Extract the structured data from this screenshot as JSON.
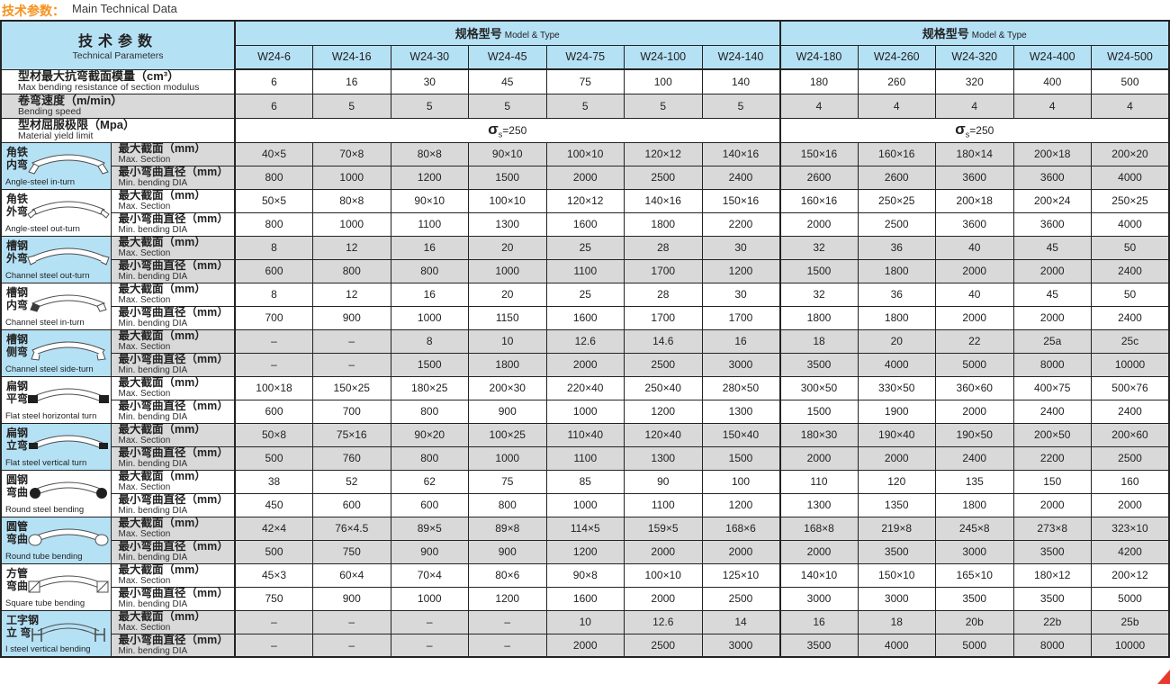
{
  "colors": {
    "accent_blue": "#b5e1f5",
    "row_grey": "#d9d9d9",
    "title_orange": "#f6921e",
    "corner_red": "#e8392f",
    "border": "#232323"
  },
  "title": {
    "zh": "技术参数：",
    "en": "Main Technical Data"
  },
  "header": {
    "param_zh": "技术参数",
    "param_en": "Technical Parameters",
    "group_label_zh": "规格型号",
    "group_label_en": "Model & Type",
    "models": [
      "W24-6",
      "W24-16",
      "W24-30",
      "W24-45",
      "W24-75",
      "W24-100",
      "W24-140",
      "W24-180",
      "W24-260",
      "W24-320",
      "W24-400",
      "W24-500"
    ]
  },
  "spec_rows": [
    {
      "key": "section-modulus",
      "zh": "型材最大抗弯截面模量（cm³）",
      "en": "Max bending resistance of section modulus",
      "shade": "white",
      "values": [
        "6",
        "16",
        "30",
        "45",
        "75",
        "100",
        "140",
        "180",
        "260",
        "320",
        "400",
        "500"
      ]
    },
    {
      "key": "bending-speed",
      "zh": "卷弯速度（m/min）",
      "en": "Bending speed",
      "shade": "grey",
      "values": [
        "6",
        "5",
        "5",
        "5",
        "5",
        "5",
        "5",
        "4",
        "4",
        "4",
        "4",
        "4"
      ]
    }
  ],
  "yield_row": {
    "zh": "型材屈服极限（Mpa）",
    "en": "Material yield limit",
    "sigma": "σ",
    "sub": "s",
    "rest": "=250"
  },
  "row_labels": {
    "max_zh": "最大截面（mm）",
    "max_en": "Max. Section",
    "min_zh": "最小弯曲直径（mm）",
    "min_en": "Min. bending DIA"
  },
  "bend_rows": [
    {
      "zh1": "角铁",
      "zh2": "内弯",
      "en": "Angle-steel in-turn",
      "icon": "angle-steel-in-turn",
      "max": [
        "40×5",
        "70×8",
        "80×8",
        "90×10",
        "100×10",
        "120×12",
        "140×16",
        "150×16",
        "160×16",
        "180×14",
        "200×18",
        "200×20"
      ],
      "min": [
        "800",
        "1000",
        "1200",
        "1500",
        "2000",
        "2500",
        "2400",
        "2600",
        "2600",
        "3600",
        "3600",
        "4000"
      ]
    },
    {
      "zh1": "角铁",
      "zh2": "外弯",
      "en": "Angle-steel out-turn",
      "icon": "angle-steel-out-turn",
      "max": [
        "50×5",
        "80×8",
        "90×10",
        "100×10",
        "120×12",
        "140×16",
        "150×16",
        "160×16",
        "250×25",
        "200×18",
        "200×24",
        "250×25"
      ],
      "min": [
        "800",
        "1000",
        "1100",
        "1300",
        "1600",
        "1800",
        "2200",
        "2000",
        "2500",
        "3600",
        "3600",
        "4000"
      ]
    },
    {
      "zh1": "槽钢",
      "zh2": "外弯",
      "en": "Channel steel out-turn",
      "icon": "channel-steel-out-turn",
      "max": [
        "8",
        "12",
        "16",
        "20",
        "25",
        "28",
        "30",
        "32",
        "36",
        "40",
        "45",
        "50"
      ],
      "min": [
        "600",
        "800",
        "800",
        "1000",
        "1100",
        "1700",
        "1200",
        "1500",
        "1800",
        "2000",
        "2000",
        "2400"
      ]
    },
    {
      "zh1": "槽钢",
      "zh2": "内弯",
      "en": "Channel steel in-turn",
      "icon": "channel-steel-in-turn",
      "max": [
        "8",
        "12",
        "16",
        "20",
        "25",
        "28",
        "30",
        "32",
        "36",
        "40",
        "45",
        "50"
      ],
      "min": [
        "700",
        "900",
        "1000",
        "1150",
        "1600",
        "1700",
        "1700",
        "1800",
        "1800",
        "2000",
        "2000",
        "2400"
      ]
    },
    {
      "zh1": "槽钢",
      "zh2": "侧弯",
      "en": "Channel steel side-turn",
      "icon": "channel-steel-side-turn",
      "max": [
        "–",
        "–",
        "8",
        "10",
        "12.6",
        "14.6",
        "16",
        "18",
        "20",
        "22",
        "25a",
        "25c"
      ],
      "min": [
        "–",
        "–",
        "1500",
        "1800",
        "2000",
        "2500",
        "3000",
        "3500",
        "4000",
        "5000",
        "8000",
        "10000"
      ]
    },
    {
      "zh1": "扁钢",
      "zh2": "平弯",
      "en": "Flat steel horizontal turn",
      "icon": "flat-steel-horizontal-turn",
      "max": [
        "100×18",
        "150×25",
        "180×25",
        "200×30",
        "220×40",
        "250×40",
        "280×50",
        "300×50",
        "330×50",
        "360×60",
        "400×75",
        "500×76"
      ],
      "min": [
        "600",
        "700",
        "800",
        "900",
        "1000",
        "1200",
        "1300",
        "1500",
        "1900",
        "2000",
        "2400",
        "2400"
      ]
    },
    {
      "zh1": "扁钢",
      "zh2": "立弯",
      "en": "Flat steel vertical turn",
      "icon": "flat-steel-vertical-turn",
      "max": [
        "50×8",
        "75×16",
        "90×20",
        "100×25",
        "110×40",
        "120×40",
        "150×40",
        "180×30",
        "190×40",
        "190×50",
        "200×50",
        "200×60"
      ],
      "min": [
        "500",
        "760",
        "800",
        "1000",
        "1100",
        "1300",
        "1500",
        "2000",
        "2000",
        "2400",
        "2200",
        "2500"
      ]
    },
    {
      "zh1": "圆钢",
      "zh2": "弯曲",
      "en": "Round steel bending",
      "icon": "round-steel-bending",
      "max": [
        "38",
        "52",
        "62",
        "75",
        "85",
        "90",
        "100",
        "110",
        "120",
        "135",
        "150",
        "160"
      ],
      "min": [
        "450",
        "600",
        "600",
        "800",
        "1000",
        "1100",
        "1200",
        "1300",
        "1350",
        "1800",
        "2000",
        "2000"
      ]
    },
    {
      "zh1": "圆管",
      "zh2": "弯曲",
      "en": "Round tube bending",
      "icon": "round-tube-bending",
      "max": [
        "42×4",
        "76×4.5",
        "89×5",
        "89×8",
        "114×5",
        "159×5",
        "168×6",
        "168×8",
        "219×8",
        "245×8",
        "273×8",
        "323×10"
      ],
      "min": [
        "500",
        "750",
        "900",
        "900",
        "1200",
        "2000",
        "2000",
        "2000",
        "3500",
        "3000",
        "3500",
        "4200"
      ]
    },
    {
      "zh1": "方管",
      "zh2": "弯曲",
      "en": "Square tube bending",
      "icon": "square-tube-bending",
      "max": [
        "45×3",
        "60×4",
        "70×4",
        "80×6",
        "90×8",
        "100×10",
        "125×10",
        "140×10",
        "150×10",
        "165×10",
        "180×12",
        "200×12"
      ],
      "min": [
        "750",
        "900",
        "1000",
        "1200",
        "1600",
        "2000",
        "2500",
        "3000",
        "3000",
        "3500",
        "3500",
        "5000"
      ]
    },
    {
      "zh1": "工字钢",
      "zh2": "立 弯",
      "en": "I steel vertical bending",
      "icon": "i-steel-vertical-bending",
      "max": [
        "–",
        "–",
        "–",
        "–",
        "10",
        "12.6",
        "14",
        "16",
        "18",
        "20b",
        "22b",
        "25b"
      ],
      "min": [
        "–",
        "–",
        "–",
        "–",
        "2000",
        "2500",
        "3000",
        "3500",
        "4000",
        "5000",
        "8000",
        "10000"
      ]
    }
  ]
}
